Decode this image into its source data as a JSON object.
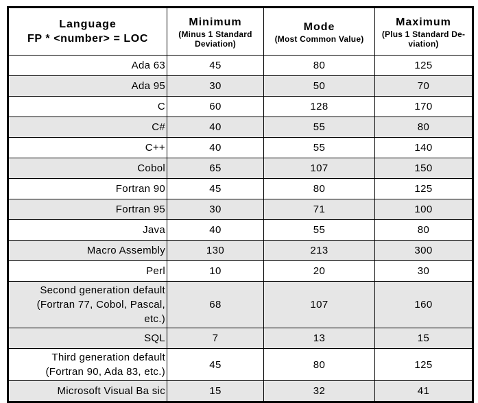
{
  "table": {
    "header": {
      "language_title": "Language",
      "language_subtitle": "FP * <number> = LOC",
      "columns": [
        {
          "title": "Minimum",
          "subtitle": "(Minus 1 Standard\nDeviation)"
        },
        {
          "title": "Mode",
          "subtitle": "(Most Common Value)"
        },
        {
          "title": "Maximum",
          "subtitle": "(Plus 1 Standard De-\nviation)"
        }
      ]
    },
    "rows": [
      {
        "language": "Ada 63",
        "minimum": "45",
        "mode": "80",
        "maximum": "125",
        "shaded": false
      },
      {
        "language": "Ada 95",
        "minimum": "30",
        "mode": "50",
        "maximum": "70",
        "shaded": true
      },
      {
        "language": "C",
        "minimum": "60",
        "mode": "128",
        "maximum": "170",
        "shaded": false
      },
      {
        "language": "C#",
        "minimum": "40",
        "mode": "55",
        "maximum": "80",
        "shaded": true
      },
      {
        "language": "C++",
        "minimum": "40",
        "mode": "55",
        "maximum": "140",
        "shaded": false
      },
      {
        "language": "Cobol",
        "minimum": "65",
        "mode": "107",
        "maximum": "150",
        "shaded": true
      },
      {
        "language": "Fortran 90",
        "minimum": "45",
        "mode": "80",
        "maximum": "125",
        "shaded": false
      },
      {
        "language": "Fortran 95",
        "minimum": "30",
        "mode": "71",
        "maximum": "100",
        "shaded": true
      },
      {
        "language": "Java",
        "minimum": "40",
        "mode": "55",
        "maximum": "80",
        "shaded": false
      },
      {
        "language": "Macro Assembly",
        "minimum": "130",
        "mode": "213",
        "maximum": "300",
        "shaded": true
      },
      {
        "language": "Perl",
        "minimum": "10",
        "mode": "20",
        "maximum": "30",
        "shaded": false
      },
      {
        "language": "Second generation default\n(Fortran 77, Cobol, Pascal,\netc.)",
        "minimum": "68",
        "mode": "107",
        "maximum": "160",
        "shaded": true
      },
      {
        "language": "SQL",
        "minimum": "7",
        "mode": "13",
        "maximum": "15",
        "shaded": true
      },
      {
        "language": "Third generation default\n(Fortran 90, Ada 83, etc.)",
        "minimum": "45",
        "mode": "80",
        "maximum": "125",
        "shaded": false
      },
      {
        "language": "Microsoft Visual Ba sic",
        "minimum": "15",
        "mode": "32",
        "maximum": "41",
        "shaded": true
      }
    ]
  },
  "colors": {
    "row_shade": "#e6e6e6",
    "border": "#000000",
    "text": "#000000"
  }
}
